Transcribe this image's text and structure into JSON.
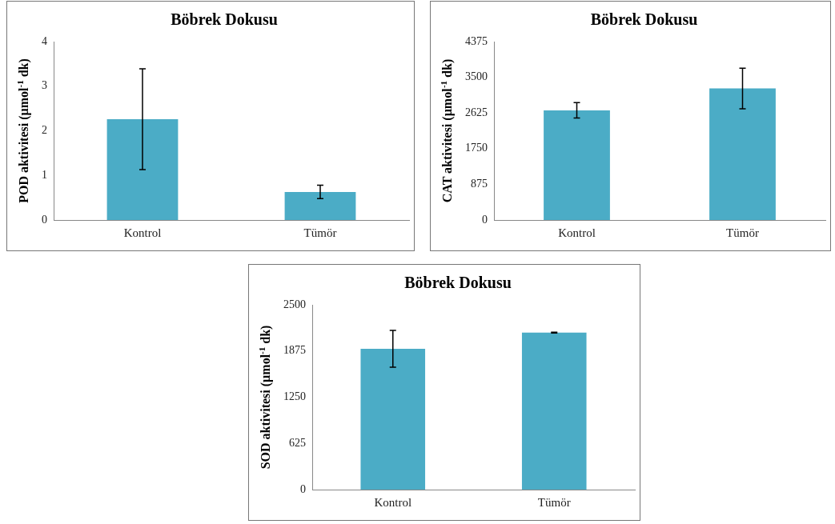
{
  "chart_data": [
    {
      "type": "bar",
      "title": "Böbrek Dokusu",
      "ylabel": "POD aktivitesi (µmol$^{-1}$ dk)",
      "categories": [
        "Kontrol",
        "Tümör"
      ],
      "values": [
        2.26,
        0.63
      ],
      "errors": [
        1.13,
        0.15
      ],
      "color": "#4bacc6",
      "ylim": [
        0,
        4
      ],
      "yticks": [
        0,
        1,
        2,
        3,
        4
      ]
    },
    {
      "type": "bar",
      "title": "Böbrek Dokusu",
      "ylabel": "CAT aktivitesi (µmol$^{-1}$ dk)",
      "categories": [
        "Kontrol",
        "Tümör"
      ],
      "values": [
        2690,
        3225
      ],
      "errors": [
        190,
        500
      ],
      "color": "#4bacc6",
      "ylim": [
        0,
        4375
      ],
      "yticks": [
        0,
        875,
        1750,
        2625,
        3500,
        4375
      ]
    },
    {
      "type": "bar",
      "title": "Böbrek Dokusu",
      "ylabel": "SOD aktivitesi (µmol$^{-1}$ dk)",
      "categories": [
        "Kontrol",
        "Tümör"
      ],
      "values": [
        1905,
        2124
      ],
      "errors": [
        250,
        5
      ],
      "color": "#4bacc6",
      "ylim": [
        0,
        2500
      ],
      "yticks": [
        0,
        625,
        1250,
        1875,
        2500
      ]
    }
  ]
}
